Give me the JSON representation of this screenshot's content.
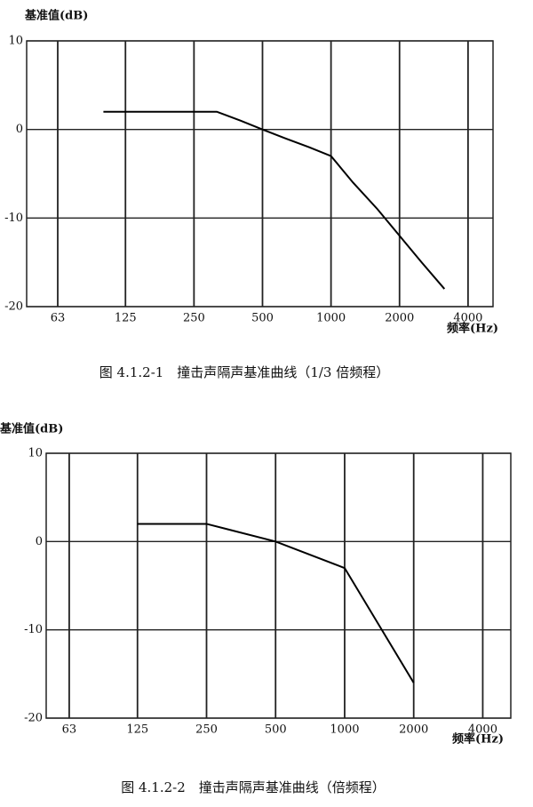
{
  "chart_data": [
    {
      "type": "line",
      "y_label": "基准值(dB)",
      "x_label": "频率(Hz)",
      "caption": "图 4.1.2-1　撞击声隔声基准曲线（1/3 倍频程）",
      "x": [
        100,
        125,
        160,
        200,
        250,
        315,
        400,
        500,
        630,
        800,
        1000,
        1250,
        1600,
        2000,
        2500,
        3150
      ],
      "series": [
        {
          "color": "#000000",
          "values": [
            2,
            2,
            2,
            2,
            2,
            2,
            1,
            0,
            -1,
            -2,
            -3,
            -6,
            -9,
            -12,
            -15,
            -18
          ]
        }
      ],
      "xlim": [
        46,
        5150
      ],
      "xticks": [
        63,
        125,
        250,
        500,
        1000,
        2000,
        4000
      ],
      "log_x": true,
      "ylim": [
        -20,
        10
      ],
      "yticks": [
        -20,
        -10,
        0,
        10
      ],
      "grid": true
    },
    {
      "type": "line",
      "y_label": "基准值(dB)",
      "x_label": "频率(Hz)",
      "caption": "图 4.1.2-2　撞击声隔声基准曲线（倍频程）",
      "x": [
        125,
        250,
        500,
        1000,
        2000
      ],
      "series": [
        {
          "color": "#000000",
          "values": [
            2,
            2,
            0,
            -3,
            -16
          ]
        }
      ],
      "xlim": [
        50,
        5300
      ],
      "xticks": [
        63,
        125,
        250,
        500,
        1000,
        2000,
        4000
      ],
      "log_x": true,
      "ylim": [
        -20,
        10
      ],
      "yticks": [
        -20,
        -10,
        0,
        10
      ],
      "grid": true
    }
  ]
}
